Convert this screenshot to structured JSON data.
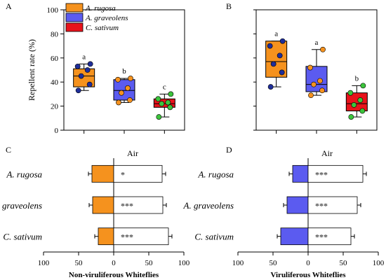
{
  "chart_data": [
    {
      "panel": "A",
      "type": "box",
      "ylabel": "Repellent rate (%)",
      "ylim": [
        0,
        100
      ],
      "yticks": [
        0,
        20,
        40,
        60,
        80,
        100
      ],
      "legend": [
        {
          "label": "A. rugosa",
          "color": "#F5921E"
        },
        {
          "label": "A. graveolens",
          "color": "#5B5BF0"
        },
        {
          "label": "C. sativum",
          "color": "#E8131B"
        }
      ],
      "groups": [
        {
          "name": "A. rugosa",
          "color": "#F5921E",
          "dot": "#1F2E9A",
          "letter": "a",
          "whisker_low": 33,
          "q1": 36,
          "median": 45,
          "q3": 51,
          "whisker_high": 55,
          "points": [
            33,
            38,
            45,
            50,
            53,
            55
          ]
        },
        {
          "name": "A. graveolens",
          "color": "#5B5BF0",
          "dot": "#F5921E",
          "letter": "b",
          "whisker_low": 23,
          "q1": 25,
          "median": 33,
          "q3": 42,
          "whisker_high": 43,
          "points": [
            23,
            25,
            31,
            35,
            42,
            43
          ]
        },
        {
          "name": "C. sativum",
          "color": "#E8131B",
          "dot": "#3CC43C",
          "letter": "c",
          "whisker_low": 11,
          "q1": 19,
          "median": 22,
          "q3": 26,
          "whisker_high": 30,
          "points": [
            11,
            19,
            22,
            23,
            26,
            30
          ]
        }
      ]
    },
    {
      "panel": "B",
      "type": "box",
      "ylim": [
        0,
        100
      ],
      "groups": [
        {
          "name": "A. rugosa",
          "color": "#F5921E",
          "dot": "#1F2E9A",
          "letter": "a",
          "whisker_low": 36,
          "q1": 44,
          "median": 57,
          "q3": 74,
          "whisker_high": 74,
          "points": [
            36,
            48,
            55,
            62,
            70,
            74
          ]
        },
        {
          "name": "A. graveolens",
          "color": "#5B5BF0",
          "dot": "#F5921E",
          "letter": "a",
          "whisker_low": 29,
          "q1": 32,
          "median": 38,
          "q3": 53,
          "whisker_high": 67,
          "points": [
            29,
            33,
            38,
            41,
            52,
            67
          ]
        },
        {
          "name": "C. sativum",
          "color": "#E8131B",
          "dot": "#3CC43C",
          "letter": "b",
          "whisker_low": 11,
          "q1": 16,
          "median": 22,
          "q3": 31,
          "whisker_high": 37,
          "points": [
            11,
            16,
            21,
            25,
            31,
            37
          ]
        }
      ]
    },
    {
      "panel": "C",
      "type": "bar",
      "xlabel": "Non-viruliferous Whiteflies",
      "right_label": "Air",
      "xticks": [
        100,
        50,
        0,
        50,
        100
      ],
      "categories": [
        "A. rugosa",
        "A. graveolens",
        "C. sativum"
      ],
      "series": [
        {
          "color": "#F5921E",
          "values": [
            31,
            30,
            22
          ]
        },
        {
          "color": "#FFFFFF",
          "values": [
            69,
            70,
            78
          ]
        }
      ],
      "significance": [
        "*",
        "***",
        "***"
      ]
    },
    {
      "panel": "D",
      "type": "bar",
      "xlabel": "Viruliferous Whiteflies",
      "right_label": "Air",
      "xticks": [
        100,
        50,
        0,
        50,
        100
      ],
      "categories": [
        "A. rugosa",
        "A. graveolens",
        "C. sativum"
      ],
      "series": [
        {
          "color": "#5B5BF0",
          "values": [
            22,
            30,
            39
          ]
        },
        {
          "color": "#FFFFFF",
          "values": [
            78,
            70,
            61
          ]
        }
      ],
      "significance": [
        "***",
        "***",
        "***"
      ]
    }
  ]
}
